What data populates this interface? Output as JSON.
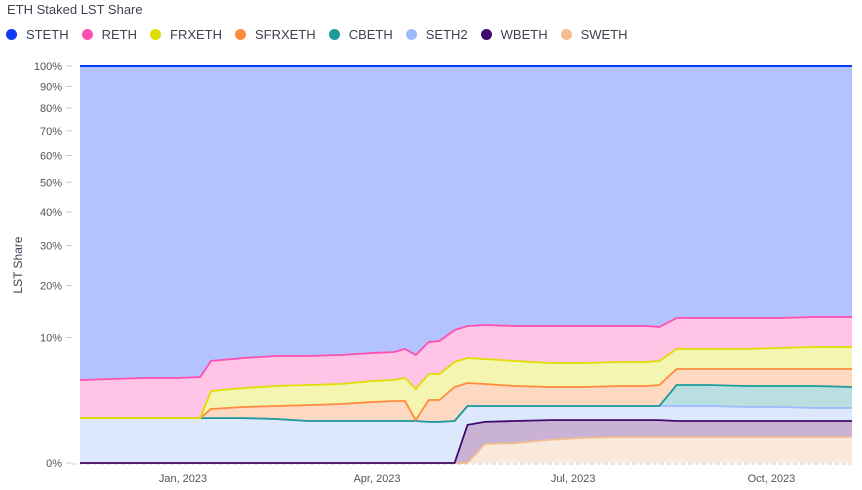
{
  "chart_data": {
    "type": "area",
    "stacked": true,
    "title": "ETH Staked LST Share",
    "ylabel": "LST Share",
    "xlabel": "",
    "y_scale": "sqrt",
    "ylim": [
      0,
      100
    ],
    "y_ticks": [
      0,
      10,
      20,
      30,
      40,
      50,
      60,
      70,
      80,
      90,
      100
    ],
    "y_tick_labels": [
      "0%",
      "10%",
      "20%",
      "30%",
      "40%",
      "50%",
      "60%",
      "70%",
      "80%",
      "90%",
      "100%"
    ],
    "x_ticks": [
      {
        "date": "2023-01-01",
        "label": "Jan, 2023"
      },
      {
        "date": "2023-04-01",
        "label": "Apr, 2023"
      },
      {
        "date": "2023-07-01",
        "label": "Jul, 2023"
      },
      {
        "date": "2023-10-01",
        "label": "Oct, 2023"
      }
    ],
    "legend_position": "top-left",
    "x": [
      "2022-11-14",
      "2022-11-29",
      "2022-12-14",
      "2022-12-29",
      "2023-01-09",
      "2023-01-14",
      "2023-01-29",
      "2023-02-13",
      "2023-02-28",
      "2023-03-15",
      "2023-03-30",
      "2023-04-09",
      "2023-04-14",
      "2023-04-19",
      "2023-04-25",
      "2023-04-30",
      "2023-05-07",
      "2023-05-13",
      "2023-05-21",
      "2023-06-04",
      "2023-06-20",
      "2023-07-06",
      "2023-07-23",
      "2023-08-04",
      "2023-08-10",
      "2023-08-18",
      "2023-09-02",
      "2023-09-19",
      "2023-10-05",
      "2023-10-21",
      "2023-11-07"
    ],
    "series": [
      {
        "name": "SWETH",
        "color": "#f2bd8f",
        "fill": "#fae8da",
        "values": [
          0,
          0,
          0,
          0,
          0,
          0,
          0,
          0,
          0,
          0,
          0,
          0,
          0,
          0,
          0,
          0,
          0,
          0,
          0.23,
          0.25,
          0.34,
          0.4,
          0.43,
          0.43,
          0.43,
          0.43,
          0.43,
          0.43,
          0.43,
          0.43,
          0.43
        ]
      },
      {
        "name": "WBETH",
        "color": "#3f0a6e",
        "fill": "#c9b2d4",
        "values": [
          0,
          0,
          0,
          0,
          0,
          0,
          0,
          0,
          0,
          0,
          0,
          0,
          0,
          0,
          0,
          0,
          0,
          0.92,
          0.84,
          0.87,
          0.83,
          0.77,
          0.74,
          0.74,
          0.74,
          0.69,
          0.69,
          0.69,
          0.69,
          0.69,
          0.69
        ]
      },
      {
        "name": "SETH2",
        "color": "#9dbcff",
        "fill": "#dde8fd",
        "values": [
          1.28,
          1.28,
          1.28,
          1.28,
          1.28,
          1.28,
          1.28,
          1.23,
          1.12,
          1.12,
          1.12,
          1.12,
          1.12,
          1.12,
          1.07,
          1.07,
          1.12,
          1.14,
          0.99,
          0.94,
          0.89,
          0.89,
          0.89,
          0.89,
          0.89,
          0.94,
          0.94,
          0.87,
          0.87,
          0.8,
          0.8
        ]
      },
      {
        "name": "CBETH",
        "color": "#1f9a9a",
        "fill": "#b9dfe0",
        "values": [
          0,
          0,
          0,
          0,
          0,
          0,
          0,
          0,
          0,
          0,
          0,
          0,
          0,
          0,
          0,
          0,
          0,
          0,
          0,
          0,
          0,
          0,
          0,
          0,
          0,
          1.8,
          1.8,
          1.77,
          1.77,
          1.84,
          1.74
        ]
      },
      {
        "name": "SFRXETH",
        "color": "#ff8a3d",
        "fill": "#fdd9c2",
        "values": [
          0,
          0,
          0,
          0,
          0,
          0.57,
          0.71,
          0.83,
          1.01,
          1.09,
          1.24,
          1.32,
          1.32,
          0.05,
          1.45,
          1.45,
          2.54,
          2.0,
          1.9,
          1.7,
          1.6,
          1.6,
          1.7,
          1.7,
          1.8,
          1.75,
          1.75,
          1.85,
          1.85,
          1.85,
          1.95
        ]
      },
      {
        "name": "FRXETH",
        "color": "#dede00",
        "fill": "#f3f5b0",
        "values": [
          0,
          0,
          0,
          0,
          0,
          1.44,
          1.57,
          1.7,
          1.73,
          1.75,
          1.91,
          1.93,
          2.14,
          2.3,
          2.51,
          2.51,
          2.81,
          2.94,
          2.9,
          2.84,
          2.69,
          2.69,
          2.71,
          2.71,
          2.74,
          2.64,
          2.64,
          2.64,
          2.78,
          2.93,
          2.93
        ]
      },
      {
        "name": "RETH",
        "color": "#ff4fb0",
        "fill": "#ffc4e6",
        "values": [
          3.09,
          3.2,
          3.3,
          3.3,
          3.41,
          3.31,
          3.44,
          3.51,
          3.41,
          3.44,
          3.41,
          3.45,
          3.67,
          3.93,
          4.26,
          4.41,
          4.75,
          4.91,
          5.22,
          5.31,
          5.56,
          5.56,
          5.44,
          5.44,
          5.14,
          5.09,
          5.09,
          5.09,
          4.95,
          4.99,
          4.99
        ]
      },
      {
        "name": "STETH",
        "color": "#0b3cf5",
        "fill": "#b3c3fd",
        "values": [
          95.63,
          95.52,
          95.42,
          95.42,
          95.31,
          93.4,
          93.0,
          92.73,
          92.73,
          92.6,
          92.32,
          92.18,
          91.75,
          92.6,
          90.71,
          90.56,
          88.78,
          88.09,
          87.92,
          88.09,
          88.09,
          88.09,
          88.09,
          88.09,
          88.26,
          86.66,
          86.66,
          86.66,
          86.66,
          86.47,
          86.47
        ]
      }
    ],
    "legend_order": [
      "STETH",
      "RETH",
      "FRXETH",
      "SFRXETH",
      "CBETH",
      "SETH2",
      "WBETH",
      "SWETH"
    ]
  }
}
